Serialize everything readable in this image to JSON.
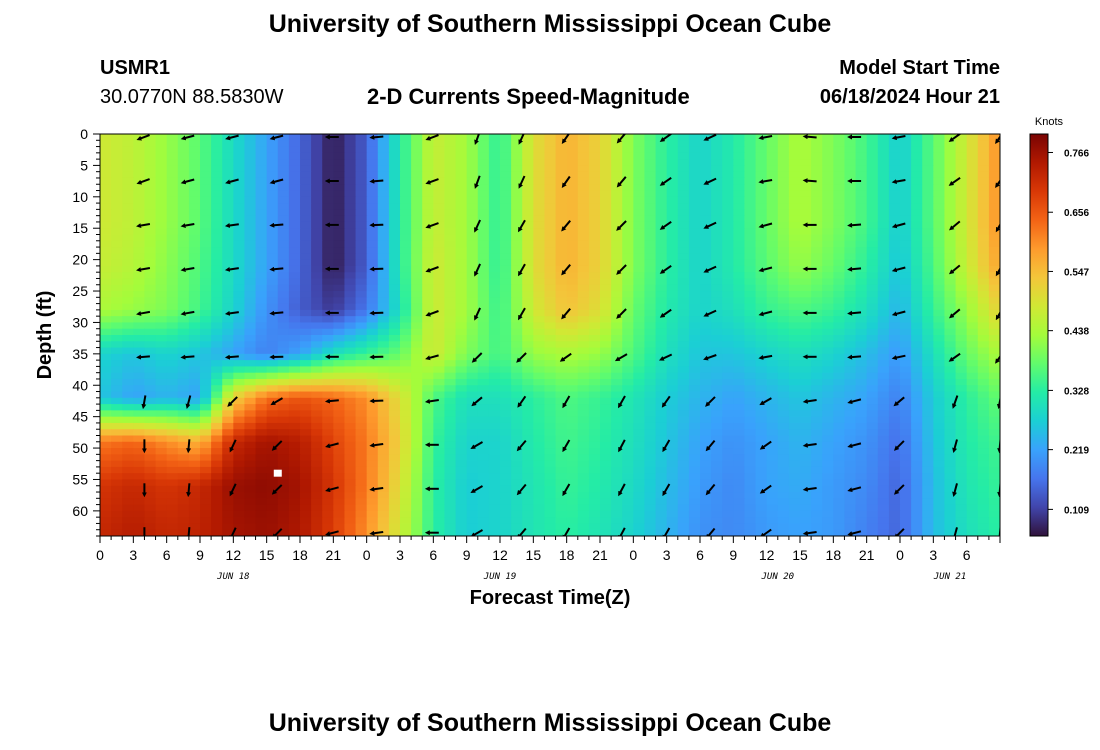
{
  "header": {
    "title": "University of Southern Mississippi Ocean Cube",
    "station_id": "USMR1",
    "station_coords": "30.0770N  88.5830W",
    "subtitle": "2-D Currents Speed-Magnitude",
    "model_start_label": "Model Start Time",
    "model_start_value": "06/18/2024 Hour 21"
  },
  "footer": {
    "title": "University of Southern Mississippi Ocean Cube"
  },
  "colors": {
    "scale": [
      "#30123b",
      "#4145ab",
      "#4675ed",
      "#39a2fc",
      "#1bcfd4",
      "#24eca6",
      "#61fc6c",
      "#a4fc3b",
      "#d1e834",
      "#f3c63a",
      "#fe9b2d",
      "#f36315",
      "#d93806",
      "#b11901",
      "#7a0403"
    ],
    "marker": "#ffffff"
  },
  "chart_data": {
    "type": "heatmap",
    "title": "2-D Currents Speed-Magnitude",
    "xlabel": "Forecast Time(Z)",
    "ylabel": "Depth (ft)",
    "colorbar_label": "Knots",
    "x_range_hours": [
      0,
      81
    ],
    "y_range_ft": [
      0,
      64
    ],
    "x_tick_labels": [
      "0",
      "3",
      "6",
      "9",
      "12",
      "15",
      "18",
      "21",
      "0",
      "3",
      "6",
      "9",
      "12",
      "15",
      "18",
      "21",
      "0",
      "3",
      "6",
      "9",
      "12",
      "15",
      "18",
      "21",
      "0",
      "3",
      "6"
    ],
    "day_labels": [
      {
        "label": "JUN 18",
        "hour": 12
      },
      {
        "label": "JUN 19",
        "hour": 36
      },
      {
        "label": "JUN 20",
        "hour": 61
      },
      {
        "label": "JUN 21",
        "hour": 76.5
      }
    ],
    "y_ticks": [
      0,
      5,
      10,
      15,
      20,
      25,
      30,
      35,
      40,
      45,
      50,
      55,
      60
    ],
    "colorbar_range": [
      0.06,
      0.8
    ],
    "colorbar_ticks": [
      "0.766",
      "0.656",
      "0.547",
      "0.438",
      "0.328",
      "0.219",
      "0.109"
    ],
    "colorbar_tick_values": [
      0.766,
      0.656,
      0.547,
      0.438,
      0.328,
      0.219,
      0.109
    ],
    "depths_ft": [
      0,
      7,
      14,
      21,
      28,
      35,
      42,
      49,
      56,
      63
    ],
    "grid_hours": [
      0,
      3,
      6,
      9,
      12,
      15,
      18,
      21,
      24,
      27,
      30,
      33,
      36,
      39,
      42,
      45,
      48,
      51,
      54,
      57,
      60,
      63,
      66,
      69,
      72,
      75,
      78,
      81
    ],
    "speed_knots": [
      [
        0.48,
        0.46,
        0.42,
        0.37,
        0.29,
        0.22,
        0.15,
        0.07,
        0.14,
        0.32,
        0.47,
        0.43,
        0.33,
        0.5,
        0.56,
        0.52,
        0.4,
        0.33,
        0.28,
        0.32,
        0.38,
        0.44,
        0.4,
        0.35,
        0.27,
        0.37,
        0.48,
        0.6
      ],
      [
        0.48,
        0.46,
        0.42,
        0.37,
        0.29,
        0.22,
        0.15,
        0.07,
        0.14,
        0.32,
        0.47,
        0.43,
        0.33,
        0.5,
        0.56,
        0.52,
        0.4,
        0.33,
        0.28,
        0.32,
        0.38,
        0.44,
        0.4,
        0.35,
        0.27,
        0.37,
        0.48,
        0.6
      ],
      [
        0.48,
        0.46,
        0.42,
        0.37,
        0.29,
        0.22,
        0.15,
        0.07,
        0.14,
        0.32,
        0.47,
        0.43,
        0.33,
        0.5,
        0.56,
        0.52,
        0.4,
        0.33,
        0.28,
        0.32,
        0.38,
        0.44,
        0.4,
        0.35,
        0.27,
        0.37,
        0.48,
        0.6
      ],
      [
        0.47,
        0.45,
        0.41,
        0.36,
        0.29,
        0.22,
        0.15,
        0.07,
        0.14,
        0.32,
        0.48,
        0.43,
        0.33,
        0.5,
        0.56,
        0.52,
        0.4,
        0.33,
        0.28,
        0.32,
        0.37,
        0.42,
        0.38,
        0.33,
        0.26,
        0.36,
        0.47,
        0.58
      ],
      [
        0.44,
        0.42,
        0.4,
        0.35,
        0.28,
        0.2,
        0.14,
        0.1,
        0.17,
        0.3,
        0.48,
        0.43,
        0.34,
        0.48,
        0.54,
        0.5,
        0.38,
        0.32,
        0.28,
        0.3,
        0.34,
        0.36,
        0.34,
        0.3,
        0.24,
        0.34,
        0.42,
        0.52
      ],
      [
        0.28,
        0.26,
        0.28,
        0.26,
        0.22,
        0.18,
        0.22,
        0.3,
        0.34,
        0.38,
        0.48,
        0.4,
        0.35,
        0.42,
        0.44,
        0.42,
        0.36,
        0.3,
        0.26,
        0.26,
        0.28,
        0.3,
        0.28,
        0.25,
        0.21,
        0.3,
        0.38,
        0.44
      ],
      [
        0.26,
        0.22,
        0.24,
        0.22,
        0.52,
        0.63,
        0.66,
        0.64,
        0.6,
        0.5,
        0.36,
        0.3,
        0.3,
        0.33,
        0.36,
        0.34,
        0.31,
        0.27,
        0.24,
        0.22,
        0.24,
        0.26,
        0.24,
        0.22,
        0.18,
        0.27,
        0.33,
        0.38
      ],
      [
        0.62,
        0.64,
        0.6,
        0.56,
        0.72,
        0.76,
        0.74,
        0.68,
        0.62,
        0.52,
        0.34,
        0.28,
        0.28,
        0.32,
        0.35,
        0.33,
        0.3,
        0.26,
        0.22,
        0.2,
        0.22,
        0.24,
        0.22,
        0.2,
        0.16,
        0.26,
        0.32,
        0.35
      ],
      [
        0.7,
        0.72,
        0.7,
        0.72,
        0.77,
        0.78,
        0.76,
        0.7,
        0.62,
        0.5,
        0.33,
        0.27,
        0.28,
        0.31,
        0.34,
        0.32,
        0.29,
        0.25,
        0.21,
        0.19,
        0.22,
        0.23,
        0.21,
        0.19,
        0.15,
        0.25,
        0.31,
        0.34
      ],
      [
        0.72,
        0.74,
        0.72,
        0.73,
        0.76,
        0.77,
        0.75,
        0.69,
        0.6,
        0.48,
        0.33,
        0.27,
        0.28,
        0.31,
        0.33,
        0.31,
        0.28,
        0.24,
        0.2,
        0.19,
        0.21,
        0.22,
        0.21,
        0.18,
        0.15,
        0.25,
        0.3,
        0.33
      ]
    ],
    "vectors": {
      "hours": [
        4,
        8,
        12,
        16,
        21,
        25,
        30,
        34,
        38,
        42,
        47,
        51,
        55,
        60,
        64,
        68,
        72,
        77,
        81
      ],
      "depths_ft": [
        0,
        7,
        14,
        21,
        28,
        35,
        42,
        49,
        56,
        63
      ],
      "direction_deg_by_band": [
        {
          "depth_max_ft": 10,
          "directions": [
            250,
            255,
            255,
            255,
            270,
            265,
            250,
            200,
            205,
            215,
            220,
            235,
            245,
            260,
            275,
            270,
            260,
            235,
            215
          ]
        },
        {
          "depth_max_ft": 32,
          "directions": [
            260,
            260,
            262,
            265,
            270,
            268,
            250,
            205,
            210,
            220,
            225,
            235,
            245,
            255,
            270,
            265,
            255,
            230,
            210
          ]
        },
        {
          "depth_max_ft": 37,
          "directions": [
            265,
            265,
            265,
            268,
            270,
            268,
            255,
            225,
            225,
            235,
            240,
            245,
            250,
            260,
            270,
            265,
            258,
            235,
            215
          ]
        },
        {
          "depth_max_ft": 45,
          "directions": [
            190,
            195,
            225,
            240,
            265,
            268,
            262,
            230,
            215,
            210,
            210,
            215,
            225,
            240,
            262,
            255,
            230,
            200,
            190
          ]
        },
        {
          "depth_max_ft": 64,
          "directions": [
            180,
            185,
            205,
            225,
            255,
            262,
            270,
            240,
            220,
            210,
            208,
            210,
            220,
            235,
            262,
            255,
            225,
            195,
            185
          ]
        }
      ]
    },
    "marker": {
      "hour": 16,
      "depth_ft": 54
    }
  }
}
